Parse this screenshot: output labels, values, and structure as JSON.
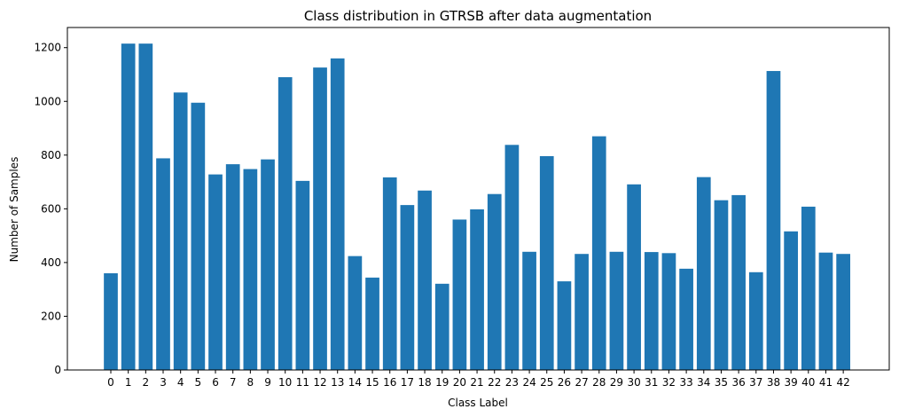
{
  "chart_data": {
    "type": "bar",
    "title": "Class distribution in GTRSB after data augmentation",
    "xlabel": "Class Label",
    "ylabel": "Number of Samples",
    "categories": [
      "0",
      "1",
      "2",
      "3",
      "4",
      "5",
      "6",
      "7",
      "8",
      "9",
      "10",
      "11",
      "12",
      "13",
      "14",
      "15",
      "16",
      "17",
      "18",
      "19",
      "20",
      "21",
      "22",
      "23",
      "24",
      "25",
      "26",
      "27",
      "28",
      "29",
      "30",
      "31",
      "32",
      "33",
      "34",
      "35",
      "36",
      "37",
      "38",
      "39",
      "40",
      "41",
      "42"
    ],
    "values": [
      360,
      1215,
      1215,
      788,
      1033,
      995,
      728,
      766,
      748,
      784,
      1090,
      704,
      1126,
      1160,
      424,
      344,
      717,
      614,
      668,
      321,
      560,
      598,
      655,
      838,
      440,
      796,
      330,
      432,
      870,
      440,
      691,
      439,
      435,
      377,
      718,
      632,
      651,
      364,
      1113,
      516,
      608,
      437,
      432
    ],
    "ylim": [
      0,
      1275
    ],
    "yticks": [
      0,
      200,
      400,
      600,
      800,
      1000,
      1200
    ],
    "bar_color": "#1f77b4",
    "grid": false,
    "legend": null
  }
}
